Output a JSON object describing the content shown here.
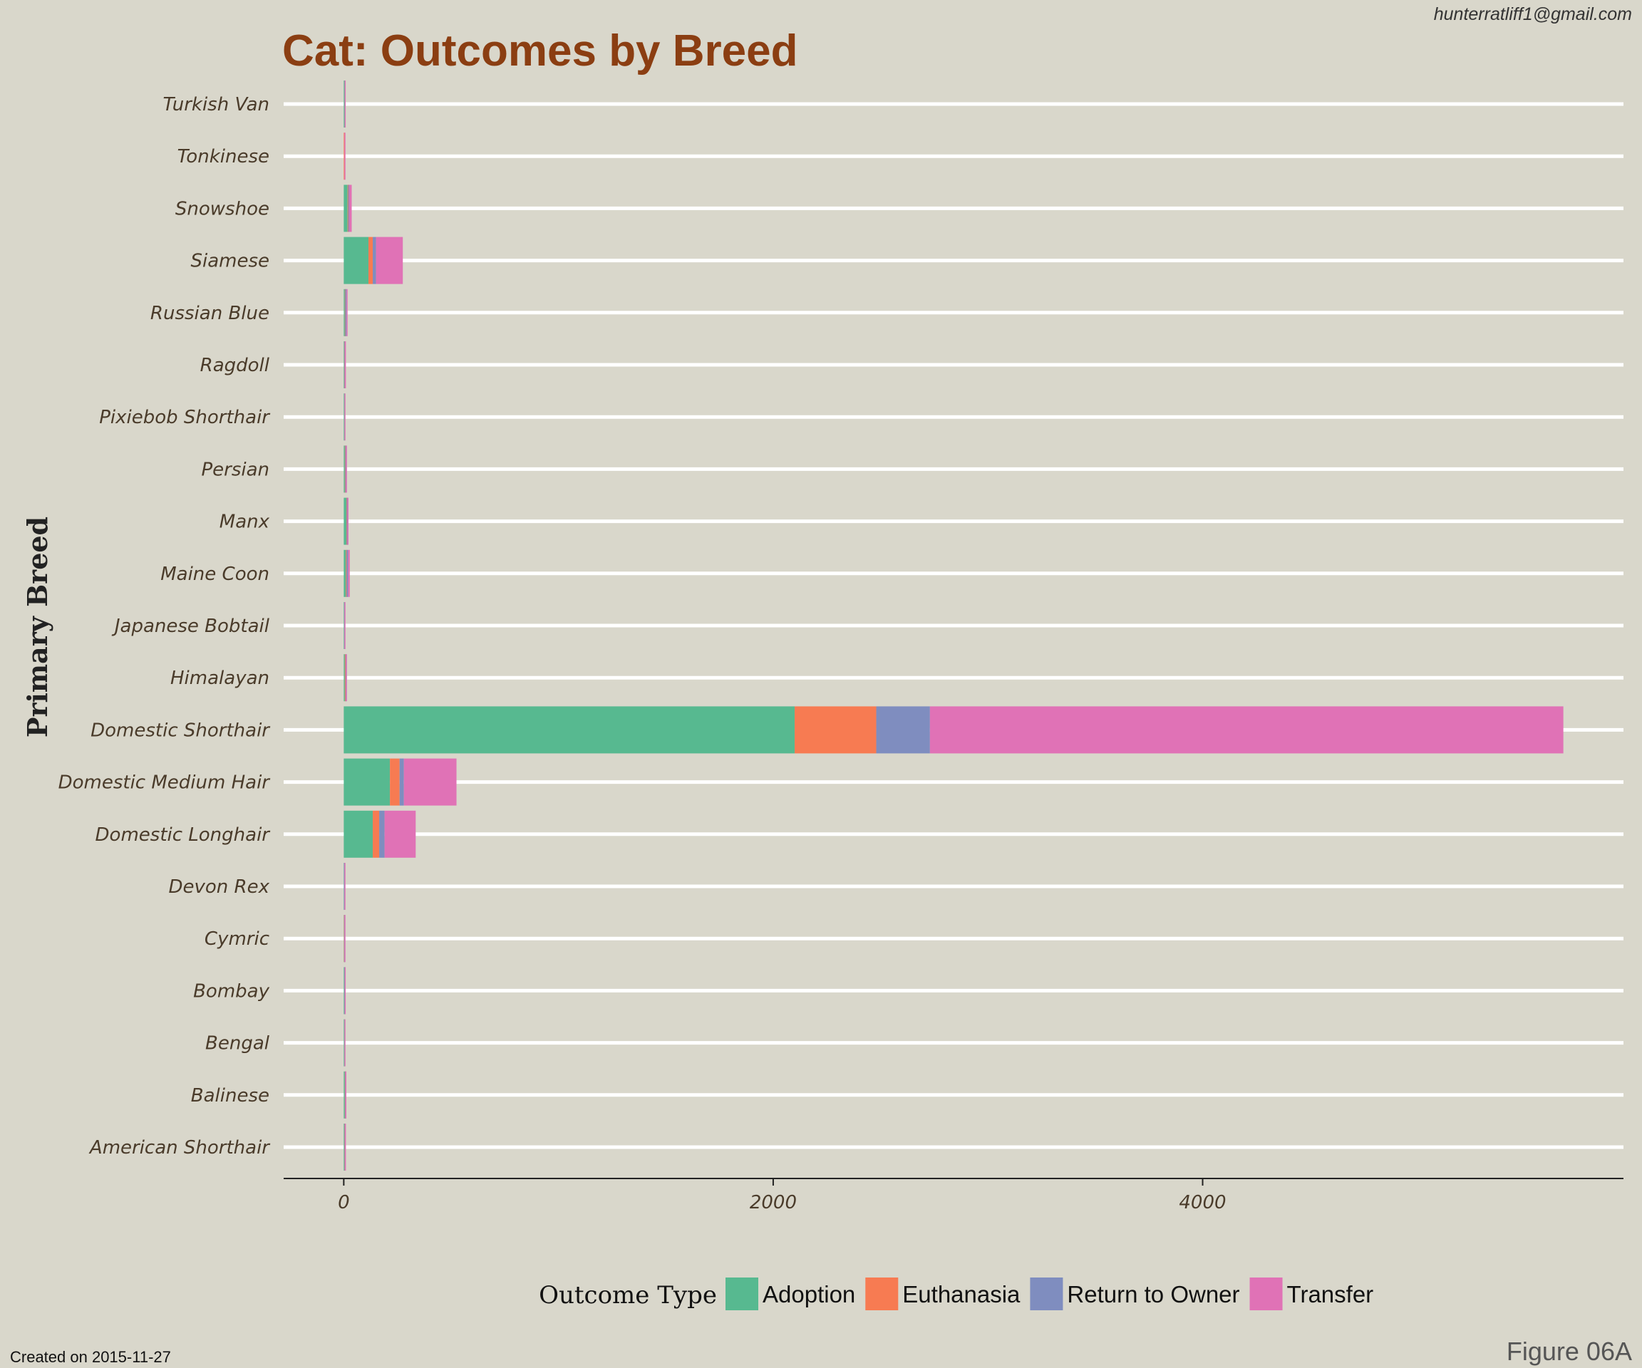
{
  "email": "hunterratliff1@gmail.com",
  "created": "Created on 2015-11-27",
  "figure": "Figure 06A",
  "colors": {
    "Adoption": "#57b990",
    "Euthanasia": "#f77b52",
    "Return to Owner": "#7f8dbf",
    "Transfer": "#e072b6",
    "background": "#d9d7cb",
    "grid": "#ffffff",
    "title": "#8b3e12"
  },
  "chart_data": {
    "type": "bar",
    "orientation": "horizontal",
    "stacked": true,
    "title": "Cat: Outcomes by Breed",
    "ylabel": "Primary Breed",
    "xlabel": "",
    "xlim": [
      -280,
      5960
    ],
    "xticks": [
      0,
      2000,
      4000
    ],
    "grid": "horizontal",
    "legend_position": "bottom",
    "legend_title": "Outcome Type",
    "categories": [
      "Turkish Van",
      "Tonkinese",
      "Snowshoe",
      "Siamese",
      "Russian Blue",
      "Ragdoll",
      "Pixiebob Shorthair",
      "Persian",
      "Manx",
      "Maine Coon",
      "Japanese Bobtail",
      "Himalayan",
      "Domestic Shorthair",
      "Domestic Medium Hair",
      "Domestic Longhair",
      "Devon Rex",
      "Cymric",
      "Bombay",
      "Bengal",
      "Balinese",
      "American Shorthair"
    ],
    "series": [
      {
        "name": "Adoption",
        "values": [
          4,
          0,
          18,
          115,
          5,
          2,
          3,
          5,
          12,
          10,
          2,
          5,
          2100,
          215,
          135,
          1,
          1,
          3,
          3,
          5,
          3
        ]
      },
      {
        "name": "Euthanasia",
        "values": [
          0,
          3,
          3,
          20,
          2,
          1,
          0,
          2,
          2,
          3,
          0,
          3,
          380,
          45,
          30,
          0,
          1,
          0,
          0,
          1,
          1
        ]
      },
      {
        "name": "Return to Owner",
        "values": [
          0,
          0,
          4,
          15,
          6,
          2,
          0,
          3,
          3,
          7,
          1,
          2,
          250,
          20,
          25,
          2,
          1,
          1,
          0,
          1,
          1
        ]
      },
      {
        "name": "Transfer",
        "values": [
          1,
          2,
          12,
          125,
          3,
          2,
          1,
          2,
          3,
          8,
          1,
          3,
          2950,
          245,
          145,
          3,
          2,
          1,
          1,
          1,
          4
        ]
      }
    ]
  }
}
